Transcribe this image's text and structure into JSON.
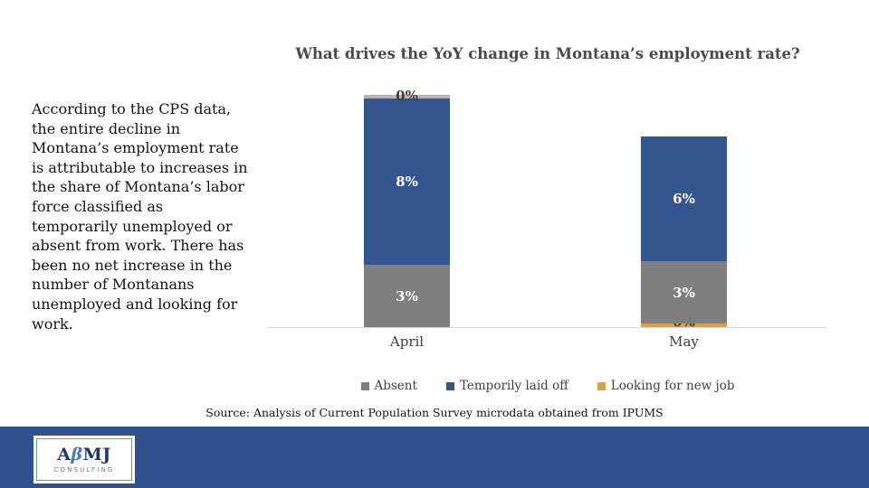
{
  "chart_data": {
    "type": "bar",
    "stacked": true,
    "title": "What drives the YoY change in Montana’s employment rate?",
    "categories": [
      "April",
      "May"
    ],
    "unit": "%",
    "ylim": [
      0,
      12
    ],
    "grid": false,
    "legend_position": "bottom",
    "series": [
      {
        "name": "Absent",
        "color": "#7f7f7f",
        "values": [
          3,
          3
        ]
      },
      {
        "name": "Temporily laid off",
        "color": "#33568e",
        "values": [
          8,
          6
        ]
      },
      {
        "name": "Looking for new job",
        "color": "#db9f44",
        "values": [
          0,
          0
        ]
      }
    ],
    "bars": [
      {
        "category": "April",
        "segments": [
          {
            "series": "Absent",
            "value": 3,
            "label": "3%",
            "color": "#7f7f7f",
            "label_color": "#ffffff"
          },
          {
            "series": "Temporily laid off",
            "value": 8,
            "label": "8%",
            "color": "#33568e",
            "label_color": "#ffffff"
          },
          {
            "series": "Looking for new job",
            "value": 0,
            "label": "0%",
            "color": "#b5b5b5",
            "label_color": "#3d3d3d",
            "label_pos": "top"
          }
        ]
      },
      {
        "category": "May",
        "segments": [
          {
            "series": "Looking for new job",
            "value": 0,
            "label": "0%",
            "color": "#db9f44",
            "label_color": "#3d3d3d",
            "label_pos": "bottom"
          },
          {
            "series": "Absent",
            "value": 3,
            "label": "3%",
            "color": "#7f7f7f",
            "label_color": "#ffffff"
          },
          {
            "series": "Temporily laid off",
            "value": 6,
            "label": "6%",
            "color": "#33568e",
            "label_color": "#ffffff"
          }
        ]
      }
    ]
  },
  "commentary": {
    "text": "According to the CPS data,\nthe entire decline in\nMontana’s employment rate\nis attributable to increases in\nthe share of Montana’s labor\nforce classified as\ntemporarily unemployed or\nabsent from work. There has\nbeen no net increase in the\nnumber of Montanans\nunemployed and looking for\nwork."
  },
  "source": {
    "text": "Source: Analysis of Current Population Survey microdata obtained from IPUMS"
  },
  "logo": {
    "part1": "A",
    "beta": "β",
    "part2": "MJ",
    "subtitle": "CONSULTING"
  },
  "colors": {
    "footer_band": "#2f528f",
    "axis_line": "#d9d9d9",
    "title_text": "#4a4a4a",
    "absent": "#7f7f7f",
    "temporarily_laid_off": "#33568e",
    "looking_for_new_job": "#db9f44"
  }
}
